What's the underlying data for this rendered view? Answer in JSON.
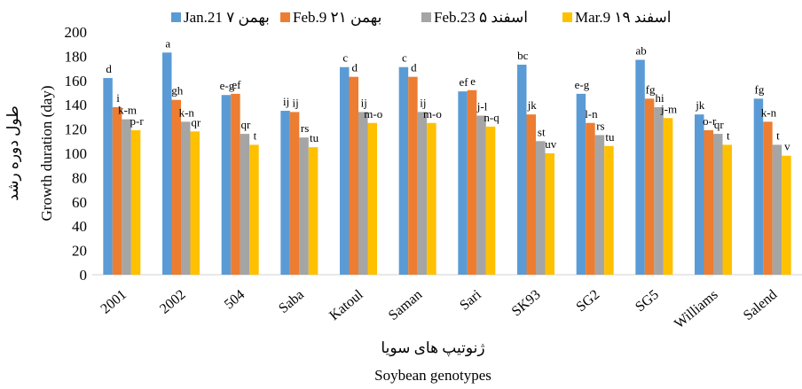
{
  "chart_data": {
    "type": "bar",
    "title": "",
    "xlabel": "Soybean genotypes",
    "xlabel_fa": "ژنوتیپ های سویا",
    "ylabel": "Growth duration (day)",
    "ylabel_fa": "طول دوره رشد",
    "ylim": [
      0,
      200
    ],
    "yticks": [
      0,
      20,
      40,
      60,
      80,
      100,
      120,
      140,
      160,
      180,
      200
    ],
    "grid": false,
    "legend_position": "top",
    "categories": [
      "2001",
      "2002",
      "504",
      "Saba",
      "Katoul",
      "Saman",
      "Sari",
      "SK93",
      "SG2",
      "SG5",
      "Williams",
      "Salend"
    ],
    "series": [
      {
        "name": "Jan.21 ۷ بهمن",
        "color": "#5B9BD5",
        "values": [
          162,
          183,
          148,
          135,
          171,
          171,
          151,
          173,
          149,
          177,
          132,
          145
        ],
        "labels": [
          "d",
          "a",
          "e-g",
          "ij",
          "c",
          "c",
          "ef",
          "bc",
          "e-g",
          "ab",
          "jk",
          "fg"
        ]
      },
      {
        "name": "Feb.9 ۲۱ بهمن",
        "color": "#ED7D31",
        "values": [
          138,
          144,
          149,
          134,
          163,
          163,
          152,
          132,
          125,
          145,
          119,
          126
        ],
        "labels": [
          "i",
          "gh",
          "ef",
          "ij",
          "d",
          "d",
          "e",
          "jk",
          "l-n",
          "fg",
          "o-r",
          "k-n"
        ]
      },
      {
        "name": "Feb.23 ۵ اسفند",
        "color": "#A5A5A5",
        "values": [
          128,
          126,
          116,
          113,
          134,
          134,
          131,
          110,
          115,
          138,
          116,
          107
        ],
        "labels": [
          "k-m",
          "k-n",
          "qr",
          "rs",
          "ij",
          "ij",
          "j-l",
          "st",
          "rs",
          "hi",
          "qr",
          "t"
        ]
      },
      {
        "name": "Mar.9 ۱۹ اسفند",
        "color": "#FFC000",
        "values": [
          119,
          118,
          107,
          105,
          125,
          125,
          122,
          100,
          106,
          129,
          107,
          98
        ],
        "labels": [
          "p-r",
          "qr",
          "t",
          "tu",
          "m-o",
          "m-o",
          "n-q",
          "uv",
          "tu",
          "j-m",
          "t",
          "v"
        ]
      }
    ]
  }
}
